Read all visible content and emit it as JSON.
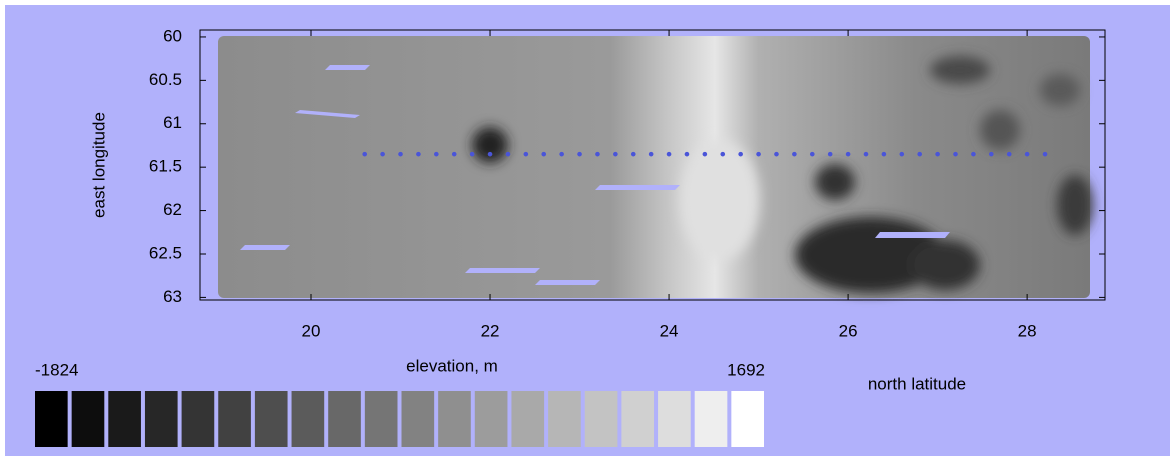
{
  "chart_data": {
    "type": "heatmap",
    "ylabel": "east longitude",
    "xlabel": "north latitude",
    "xlim": [
      18.76,
      28.87
    ],
    "ylim": [
      59.92,
      63.03
    ],
    "xticks": [
      20,
      22,
      24,
      26,
      28
    ],
    "yticks": [
      60,
      {
        "value": 60.5,
        "label": "60.5"
      },
      61,
      {
        "value": 61.5,
        "label": "61.5"
      },
      62,
      {
        "value": 62.5,
        "label": "62.5"
      },
      63
    ],
    "y_inverted": true,
    "track": {
      "color": "#4a55d8",
      "x": [
        20.6,
        20.8,
        21.0,
        21.2,
        21.4,
        21.6,
        21.8,
        22.0,
        22.2,
        22.4,
        22.6,
        22.8,
        23.0,
        23.2,
        23.4,
        23.6,
        23.8,
        24.0,
        24.2,
        24.4,
        24.6,
        24.8,
        25.0,
        25.2,
        25.4,
        25.6,
        25.8,
        26.0,
        26.2,
        26.4,
        26.6,
        26.8,
        27.0,
        27.2,
        27.4,
        27.6,
        27.8,
        28.0,
        28.2
      ],
      "y": [
        61.35,
        61.35,
        61.35,
        61.35,
        61.35,
        61.35,
        61.35,
        61.35,
        61.35,
        61.35,
        61.35,
        61.35,
        61.35,
        61.35,
        61.35,
        61.35,
        61.35,
        61.35,
        61.35,
        61.35,
        61.35,
        61.35,
        61.35,
        61.35,
        61.35,
        61.35,
        61.35,
        61.35,
        61.35,
        61.35,
        61.35,
        61.35,
        61.35,
        61.35,
        61.35,
        61.35,
        61.35,
        61.35,
        61.35
      ]
    },
    "colorbar": {
      "label": "elevation, m",
      "min": -1824,
      "max": 1692,
      "colors": [
        "#000000",
        "#0d0d0d",
        "#1a1a1a",
        "#272727",
        "#343434",
        "#414141",
        "#4e4e4e",
        "#5b5b5b",
        "#686868",
        "#757575",
        "#828282",
        "#8f8f8f",
        "#9c9c9c",
        "#a9a9a9",
        "#b6b6b6",
        "#c3c3c3",
        "#d0d0d0",
        "#dddddd",
        "#eeeeee",
        "#ffffff"
      ]
    }
  }
}
